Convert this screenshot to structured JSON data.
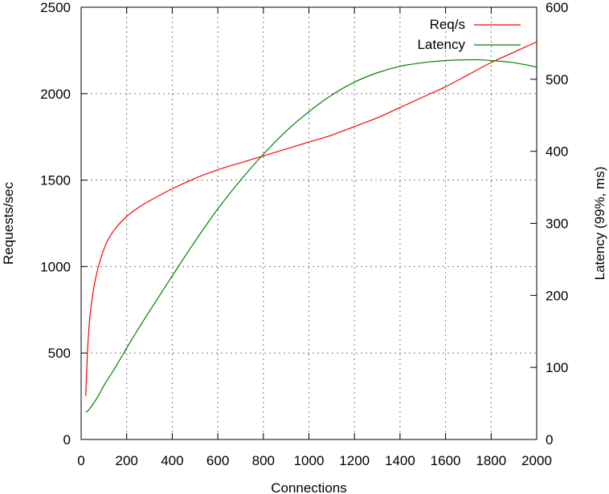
{
  "chart_data": {
    "type": "line",
    "title": "",
    "xlabel": "Connections",
    "ylabel": "Requests/sec",
    "y2label": "Latency (99%, ms)",
    "xlim": [
      0,
      2000
    ],
    "ylim": [
      0,
      2500
    ],
    "y2lim": [
      0,
      600
    ],
    "x_ticks": [
      0,
      200,
      400,
      600,
      800,
      1000,
      1200,
      1400,
      1600,
      1800,
      2000
    ],
    "y_ticks": [
      0,
      500,
      1000,
      1500,
      2000,
      2500
    ],
    "y2_ticks": [
      0,
      100,
      200,
      300,
      400,
      500,
      600
    ],
    "grid": true,
    "legend_position": "top-right",
    "series": [
      {
        "name": "Req/s",
        "axis": "left",
        "color": "#ff0000",
        "x": [
          20,
          25,
          30,
          40,
          50,
          60,
          80,
          100,
          120,
          150,
          200,
          250,
          300,
          400,
          500,
          600,
          700,
          800,
          900,
          1000,
          1100,
          1200,
          1300,
          1400,
          1500,
          1600,
          1700,
          1800,
          1900,
          2000
        ],
        "values": [
          250,
          420,
          560,
          730,
          830,
          910,
          1020,
          1100,
          1160,
          1220,
          1290,
          1340,
          1380,
          1450,
          1510,
          1560,
          1600,
          1640,
          1680,
          1720,
          1760,
          1810,
          1860,
          1920,
          1980,
          2040,
          2110,
          2180,
          2240,
          2300
        ]
      },
      {
        "name": "Latency",
        "axis": "right",
        "color": "#008000",
        "x": [
          20,
          30,
          50,
          80,
          100,
          150,
          200,
          250,
          300,
          400,
          500,
          600,
          700,
          800,
          900,
          1000,
          1100,
          1200,
          1300,
          1400,
          1500,
          1600,
          1700,
          1750,
          1800,
          1900,
          2000
        ],
        "values": [
          38,
          40,
          48,
          63,
          75,
          100,
          127,
          153,
          178,
          227,
          275,
          320,
          360,
          396,
          428,
          455,
          478,
          496,
          509,
          518,
          523,
          526,
          527,
          527,
          526,
          523,
          517
        ]
      }
    ]
  }
}
